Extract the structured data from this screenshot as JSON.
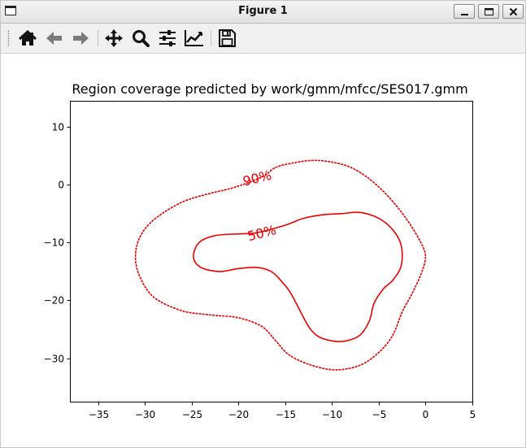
{
  "window": {
    "title": "Figure 1",
    "controls": [
      "minimize",
      "maximize",
      "close"
    ]
  },
  "toolbar": {
    "buttons": [
      {
        "name": "home",
        "icon": "home-icon"
      },
      {
        "name": "back",
        "icon": "arrow-left-icon"
      },
      {
        "name": "forward",
        "icon": "arrow-right-icon"
      },
      {
        "name": "pan",
        "icon": "move-icon"
      },
      {
        "name": "zoom",
        "icon": "magnifier-icon"
      },
      {
        "name": "configure-subplots",
        "icon": "sliders-icon"
      },
      {
        "name": "edit-axis",
        "icon": "line-chart-icon"
      },
      {
        "name": "save",
        "icon": "floppy-disk-icon"
      }
    ]
  },
  "chart_data": {
    "type": "contour",
    "title": "Region coverage predicted by work/gmm/mfcc/SES017.gmm",
    "xlabel": "",
    "ylabel": "",
    "xlim": [
      -38,
      5
    ],
    "ylim": [
      -37.5,
      14.5
    ],
    "xticks": [
      -35,
      -30,
      -25,
      -20,
      -15,
      -10,
      -5,
      0,
      5
    ],
    "yticks": [
      10,
      0,
      -10,
      -20,
      -30
    ],
    "xtick_labels": [
      "−35",
      "−30",
      "−25",
      "−20",
      "−15",
      "−10",
      "−5",
      "0",
      "5"
    ],
    "ytick_labels": [
      "10",
      "0",
      "−10",
      "−20",
      "−30"
    ],
    "grid": false,
    "color": "#ee0000",
    "series": [
      {
        "label": "90%",
        "style": "dotted",
        "label_pos": [
          -18,
          1.2
        ],
        "points": [
          [
            -16,
            3.0
          ],
          [
            -14,
            3.8
          ],
          [
            -12,
            4.2
          ],
          [
            -10,
            3.9
          ],
          [
            -8,
            3.0
          ],
          [
            -6,
            1.0
          ],
          [
            -4,
            -2.0
          ],
          [
            -2,
            -6.0
          ],
          [
            -0.5,
            -10.0
          ],
          [
            0,
            -12.5
          ],
          [
            -0.5,
            -15.5
          ],
          [
            -1.5,
            -19.0
          ],
          [
            -2.5,
            -22.0
          ],
          [
            -3.5,
            -26.0
          ],
          [
            -5,
            -29.0
          ],
          [
            -7,
            -31.2
          ],
          [
            -9.5,
            -32.0
          ],
          [
            -12,
            -31.3
          ],
          [
            -14.5,
            -29.5
          ],
          [
            -16,
            -27.0
          ],
          [
            -17.5,
            -24.5
          ],
          [
            -20,
            -23.0
          ],
          [
            -23,
            -22.5
          ],
          [
            -26,
            -21.8
          ],
          [
            -29,
            -19.5
          ],
          [
            -30.5,
            -16.0
          ],
          [
            -31,
            -12.5
          ],
          [
            -30.5,
            -9.0
          ],
          [
            -29,
            -6.0
          ],
          [
            -26,
            -3.0
          ],
          [
            -23,
            -1.5
          ],
          [
            -20.5,
            -0.5
          ],
          [
            -17.5,
            1.3
          ]
        ]
      },
      {
        "label": "50%",
        "style": "solid",
        "label_pos": [
          -17.5,
          -8.3
        ],
        "points": [
          [
            -15,
            -7.0
          ],
          [
            -13,
            -5.8
          ],
          [
            -11,
            -5.2
          ],
          [
            -9,
            -5.0
          ],
          [
            -7,
            -4.8
          ],
          [
            -5,
            -5.8
          ],
          [
            -3.5,
            -7.8
          ],
          [
            -2.6,
            -10.5
          ],
          [
            -2.6,
            -14.0
          ],
          [
            -3.5,
            -16.5
          ],
          [
            -4.5,
            -18.0
          ],
          [
            -5.5,
            -20.5
          ],
          [
            -6,
            -23.5
          ],
          [
            -7,
            -26.0
          ],
          [
            -8.5,
            -27.0
          ],
          [
            -10,
            -27.0
          ],
          [
            -11.5,
            -26.2
          ],
          [
            -12.5,
            -24.5
          ],
          [
            -13.5,
            -21.5
          ],
          [
            -14.5,
            -18.5
          ],
          [
            -15.5,
            -16.5
          ],
          [
            -16.5,
            -15.0
          ],
          [
            -18,
            -14.3
          ],
          [
            -20,
            -14.5
          ],
          [
            -22,
            -15.0
          ],
          [
            -24,
            -14.3
          ],
          [
            -24.8,
            -12.5
          ],
          [
            -24.2,
            -10.0
          ],
          [
            -22.5,
            -8.8
          ],
          [
            -20,
            -8.5
          ],
          [
            -18,
            -8.3
          ]
        ]
      }
    ]
  }
}
